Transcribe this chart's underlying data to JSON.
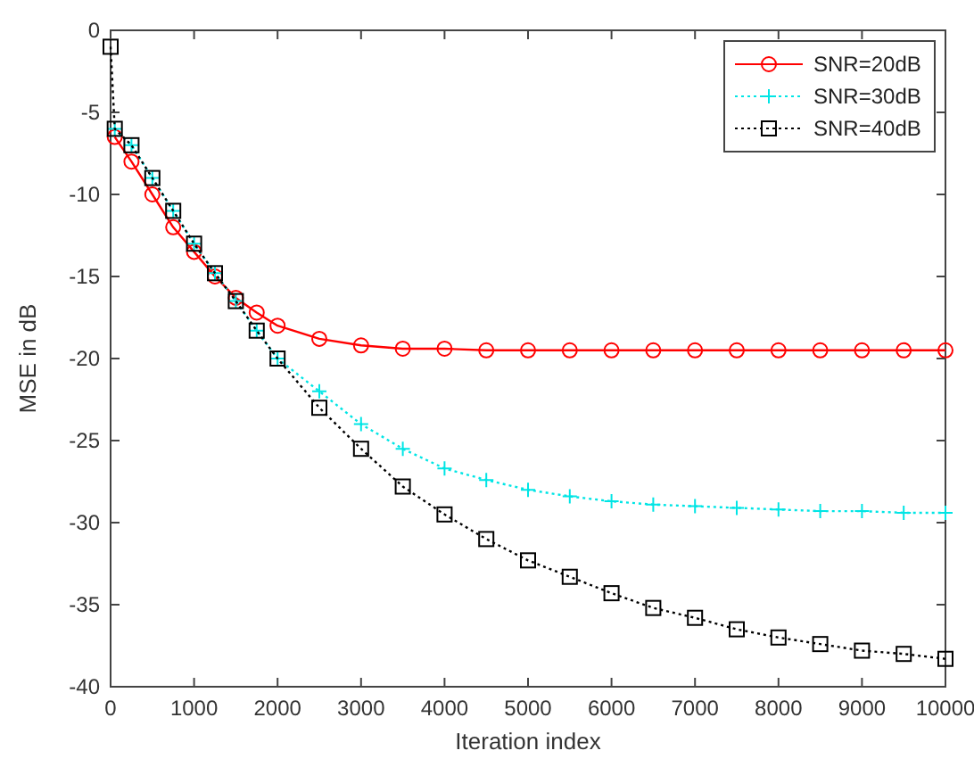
{
  "chart_data": {
    "type": "line",
    "xlabel": "Iteration index",
    "ylabel": "MSE in dB",
    "x": [
      0,
      50,
      250,
      500,
      750,
      1000,
      1250,
      1500,
      1750,
      2000,
      2500,
      3000,
      3500,
      4000,
      4500,
      5000,
      5500,
      6000,
      6500,
      7000,
      7500,
      8000,
      8500,
      9000,
      9500,
      10000
    ],
    "series": [
      {
        "name": "SNR=20dB",
        "color": "#ff0000",
        "marker": "circle",
        "line_style": "solid",
        "values": [
          null,
          -6.5,
          -8,
          -10,
          -12,
          -13.5,
          -15,
          -16.3,
          -17.2,
          -18,
          -18.8,
          -19.2,
          -19.4,
          -19.4,
          -19.5,
          -19.5,
          -19.5,
          -19.5,
          -19.5,
          -19.5,
          -19.5,
          -19.5,
          -19.5,
          -19.5,
          -19.5,
          -19.5
        ]
      },
      {
        "name": "SNR=30dB",
        "color": "#00e5e5",
        "marker": "cross",
        "line_style": "dotted",
        "values": [
          null,
          -6,
          -7,
          -9,
          -11,
          -13,
          -14.8,
          -16.5,
          -18.3,
          -20,
          -22,
          -24,
          -25.5,
          -26.7,
          -27.4,
          -28,
          -28.4,
          -28.7,
          -28.9,
          -29,
          -29.1,
          -29.2,
          -29.3,
          -29.3,
          -29.4,
          -29.4
        ]
      },
      {
        "name": "SNR=40dB",
        "color": "#000000",
        "marker": "square",
        "line_style": "dotted",
        "values": [
          -1,
          -6,
          -7,
          -9,
          -11,
          -13,
          -14.8,
          -16.5,
          -18.3,
          -20,
          -23,
          -25.5,
          -27.8,
          -29.5,
          -31,
          -32.3,
          -33.3,
          -34.3,
          -35.2,
          -35.8,
          -36.5,
          -37,
          -37.4,
          -37.8,
          -38,
          -38.3
        ]
      }
    ],
    "xlim": [
      0,
      10000
    ],
    "xticks": [
      0,
      1000,
      2000,
      3000,
      4000,
      5000,
      6000,
      7000,
      8000,
      9000,
      10000
    ],
    "ylim": [
      -40,
      0
    ],
    "yticks": [
      -40,
      -35,
      -30,
      -25,
      -20,
      -15,
      -10,
      -5,
      0
    ],
    "grid": false,
    "legend": "top right"
  }
}
